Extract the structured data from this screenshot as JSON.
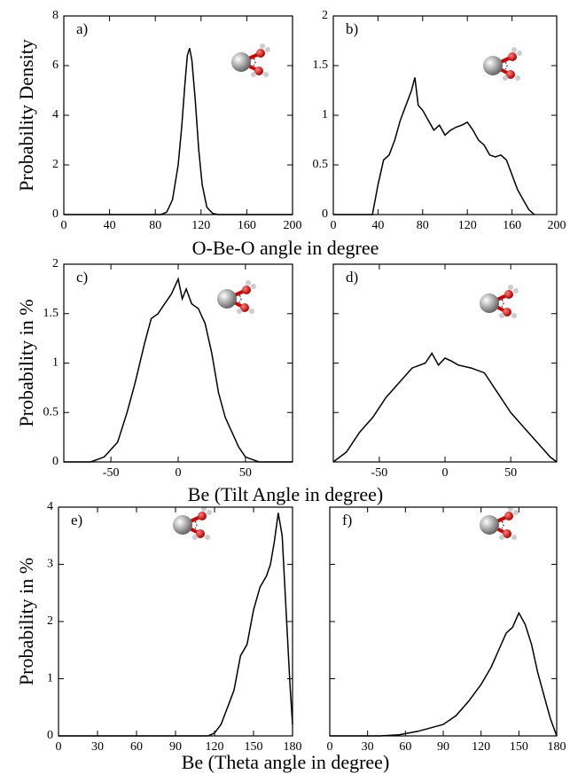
{
  "chart_data": [
    {
      "type": "line",
      "label": "a)",
      "ylabel": "Probability Density",
      "xlabel": "O-Be-O angle in degree",
      "color": "#000000",
      "x": [
        0,
        85,
        90,
        95,
        100,
        103,
        106,
        108,
        110,
        112,
        115,
        118,
        121,
        125,
        130,
        135,
        200
      ],
      "values": [
        0,
        0,
        0.1,
        0.6,
        2.0,
        3.5,
        5.3,
        6.4,
        6.7,
        6.2,
        4.6,
        2.6,
        1.2,
        0.3,
        0.05,
        0,
        0
      ],
      "xlim": [
        0,
        200
      ],
      "ylim": [
        0,
        8
      ],
      "xticks": [
        0,
        40,
        80,
        120,
        160,
        200
      ],
      "yticks": [
        0,
        2,
        4,
        6,
        8
      ],
      "ytick_labels": true
    },
    {
      "type": "line",
      "label": "b)",
      "color": "#000000",
      "x": [
        0,
        30,
        35,
        40,
        45,
        50,
        55,
        60,
        65,
        70,
        73,
        76,
        80,
        85,
        90,
        95,
        100,
        105,
        110,
        115,
        120,
        125,
        130,
        135,
        140,
        145,
        150,
        155,
        160,
        165,
        170,
        175,
        180
      ],
      "values": [
        0,
        0,
        0,
        0.3,
        0.55,
        0.6,
        0.75,
        0.95,
        1.1,
        1.25,
        1.38,
        1.1,
        1.05,
        0.95,
        0.85,
        0.9,
        0.8,
        0.85,
        0.88,
        0.9,
        0.93,
        0.85,
        0.75,
        0.7,
        0.6,
        0.58,
        0.6,
        0.55,
        0.4,
        0.25,
        0.15,
        0.05,
        0
      ],
      "xlim": [
        0,
        200
      ],
      "ylim": [
        0,
        2
      ],
      "xticks": [
        0,
        40,
        80,
        120,
        160,
        200
      ],
      "yticks": [
        0,
        0.5,
        1,
        1.5,
        2
      ],
      "ytick_labels": true
    },
    {
      "type": "line",
      "label": "c)",
      "ylabel": "Probability in %",
      "xlabel": "Be (Tilt Angle in degree)",
      "color": "#000000",
      "x": [
        -85,
        -65,
        -55,
        -45,
        -38,
        -32,
        -25,
        -20,
        -15,
        -10,
        -5,
        0,
        3,
        6,
        10,
        15,
        20,
        25,
        30,
        35,
        40,
        45,
        50,
        60,
        85
      ],
      "values": [
        0,
        0,
        0.05,
        0.2,
        0.5,
        0.8,
        1.2,
        1.45,
        1.5,
        1.6,
        1.7,
        1.85,
        1.65,
        1.75,
        1.6,
        1.55,
        1.4,
        1.1,
        0.7,
        0.45,
        0.3,
        0.15,
        0.05,
        0,
        0
      ],
      "xlim": [
        -85,
        85
      ],
      "ylim": [
        0,
        2
      ],
      "xticks": [
        -50,
        0,
        50
      ],
      "yticks": [
        0,
        0.5,
        1,
        1.5,
        2
      ],
      "ytick_labels": true
    },
    {
      "type": "line",
      "label": "d)",
      "color": "#000000",
      "x": [
        -85,
        -75,
        -65,
        -55,
        -45,
        -35,
        -25,
        -15,
        -10,
        -5,
        0,
        5,
        10,
        20,
        30,
        40,
        50,
        60,
        70,
        80,
        85
      ],
      "values": [
        0,
        0.1,
        0.3,
        0.45,
        0.65,
        0.8,
        0.95,
        1.0,
        1.1,
        0.98,
        1.05,
        1.02,
        0.98,
        0.95,
        0.9,
        0.7,
        0.5,
        0.35,
        0.2,
        0.05,
        0
      ],
      "xlim": [
        -85,
        85
      ],
      "ylim": [
        0,
        2
      ],
      "xticks": [
        -50,
        0,
        50
      ],
      "yticks": [
        0,
        0.5,
        1,
        1.5,
        2
      ],
      "ytick_labels": false
    },
    {
      "type": "line",
      "label": "e)",
      "ylabel": "Probability in %",
      "xlabel": "Be (Theta angle in degree)",
      "color": "#000000",
      "x": [
        0,
        115,
        120,
        125,
        130,
        135,
        140,
        145,
        150,
        155,
        160,
        163,
        166,
        169,
        172,
        175,
        178,
        180
      ],
      "values": [
        0,
        0,
        0.05,
        0.2,
        0.5,
        0.8,
        1.4,
        1.6,
        2.2,
        2.6,
        2.8,
        3.0,
        3.4,
        3.9,
        3.5,
        2.2,
        0.9,
        0.2
      ],
      "xlim": [
        0,
        180
      ],
      "ylim": [
        0,
        4
      ],
      "xticks": [
        0,
        30,
        60,
        90,
        120,
        150,
        180
      ],
      "yticks": [
        0,
        1,
        2,
        3,
        4
      ],
      "ytick_labels": true
    },
    {
      "type": "line",
      "label": "f)",
      "color": "#000000",
      "x": [
        0,
        40,
        55,
        70,
        90,
        100,
        110,
        120,
        128,
        135,
        140,
        145,
        150,
        155,
        160,
        165,
        170,
        175,
        180
      ],
      "values": [
        0,
        0,
        0.02,
        0.08,
        0.2,
        0.35,
        0.6,
        0.9,
        1.2,
        1.55,
        1.8,
        1.9,
        2.15,
        1.95,
        1.6,
        1.1,
        0.7,
        0.3,
        0
      ],
      "xlim": [
        0,
        180
      ],
      "ylim": [
        0,
        4
      ],
      "xticks": [
        0,
        30,
        60,
        90,
        120,
        150,
        180
      ],
      "yticks": [
        0,
        1,
        2,
        3,
        4
      ],
      "ytick_labels": false
    }
  ]
}
